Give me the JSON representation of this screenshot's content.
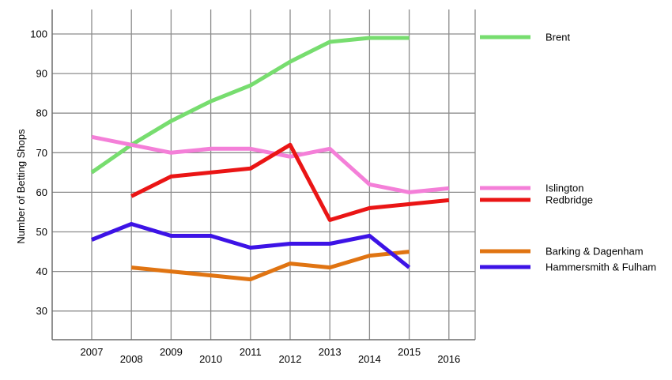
{
  "chart_data": {
    "type": "line",
    "title": "",
    "xlabel": "",
    "ylabel": "Number of Betting Shops",
    "x": [
      2007,
      2008,
      2009,
      2010,
      2011,
      2012,
      2013,
      2014,
      2015,
      2016
    ],
    "x_tick_labels": [
      "2007",
      "2008",
      "2009",
      "2010",
      "2011",
      "2012",
      "2013",
      "2014",
      "2015",
      "2016"
    ],
    "y_tick_labels": [
      "30",
      "40",
      "50",
      "60",
      "70",
      "80",
      "90",
      "100"
    ],
    "y_ticks": [
      30,
      40,
      50,
      60,
      70,
      80,
      90,
      100
    ],
    "ylim": [
      22,
      106
    ],
    "grid": true,
    "legend_placement": "right",
    "series": [
      {
        "name": "Brent",
        "color": "#77dd6f",
        "x": [
          2007,
          2008,
          2009,
          2010,
          2011,
          2012,
          2013,
          2014,
          2015
        ],
        "values": [
          65,
          72,
          78,
          83,
          87,
          93,
          98,
          99,
          99
        ]
      },
      {
        "name": "Islington",
        "color": "#f47fd8",
        "x": [
          2007,
          2008,
          2009,
          2010,
          2011,
          2012,
          2013,
          2014,
          2015,
          2016
        ],
        "values": [
          74,
          72,
          70,
          71,
          71,
          69,
          71,
          62,
          60,
          61
        ]
      },
      {
        "name": "Redbridge",
        "color": "#ea1515",
        "x": [
          2008,
          2009,
          2010,
          2011,
          2012,
          2013,
          2014,
          2015,
          2016
        ],
        "values": [
          59,
          64,
          65,
          66,
          72,
          53,
          56,
          57,
          58
        ]
      },
      {
        "name": "Barking & Dagenham",
        "color": "#e07412",
        "x": [
          2008,
          2009,
          2010,
          2011,
          2012,
          2013,
          2014,
          2015
        ],
        "values": [
          41,
          40,
          39,
          38,
          42,
          41,
          44,
          45
        ]
      },
      {
        "name": "Hammersmith & Fulham",
        "color": "#3d13e6",
        "x": [
          2007,
          2008,
          2009,
          2010,
          2011,
          2012,
          2013,
          2014,
          2015
        ],
        "values": [
          48,
          52,
          49,
          49,
          46,
          47,
          47,
          49,
          41
        ]
      }
    ]
  }
}
